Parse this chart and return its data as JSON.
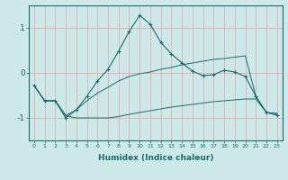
{
  "xlabel": "Humidex (Indice chaleur)",
  "ylabel": "",
  "bg_color": "#cce8e8",
  "line_color": "#1a6b6b",
  "grid_color": "#e8a0a0",
  "xlim": [
    -0.5,
    23.5
  ],
  "ylim": [
    -1.5,
    1.5
  ],
  "xticks": [
    0,
    1,
    2,
    3,
    4,
    5,
    6,
    7,
    8,
    9,
    10,
    11,
    12,
    13,
    14,
    15,
    16,
    17,
    18,
    19,
    20,
    21,
    22,
    23
  ],
  "yticks": [
    -1,
    0,
    1
  ],
  "line1_x": [
    0,
    1,
    2,
    3,
    4,
    5,
    6,
    7,
    8,
    9,
    10,
    11,
    12,
    13,
    14,
    15,
    16,
    17,
    18,
    19,
    20,
    21,
    22,
    23
  ],
  "line1_y": [
    -0.28,
    -0.62,
    -0.62,
    -1.0,
    -0.82,
    -0.52,
    -0.18,
    0.08,
    0.48,
    0.92,
    1.28,
    1.08,
    0.68,
    0.42,
    0.22,
    0.04,
    -0.06,
    -0.04,
    0.06,
    0.02,
    -0.08,
    -0.52,
    -0.88,
    -0.94
  ],
  "line2_x": [
    0,
    1,
    2,
    3,
    4,
    5,
    6,
    7,
    8,
    9,
    10,
    11,
    12,
    13,
    14,
    15,
    16,
    17,
    18,
    19,
    20,
    21,
    22,
    23
  ],
  "line2_y": [
    -0.28,
    -0.62,
    -0.62,
    -0.95,
    -0.82,
    -0.62,
    -0.45,
    -0.32,
    -0.18,
    -0.08,
    -0.02,
    0.02,
    0.08,
    0.12,
    0.18,
    0.22,
    0.26,
    0.3,
    0.32,
    0.35,
    0.38,
    -0.52,
    -0.88,
    -0.9
  ],
  "line3_x": [
    0,
    1,
    2,
    3,
    4,
    5,
    6,
    7,
    8,
    9,
    10,
    11,
    12,
    13,
    14,
    15,
    16,
    17,
    18,
    19,
    20,
    21,
    22,
    23
  ],
  "line3_y": [
    -0.28,
    -0.62,
    -0.62,
    -0.95,
    -1.0,
    -1.0,
    -1.0,
    -1.0,
    -0.97,
    -0.92,
    -0.88,
    -0.84,
    -0.8,
    -0.76,
    -0.73,
    -0.7,
    -0.67,
    -0.64,
    -0.62,
    -0.6,
    -0.58,
    -0.58,
    -0.88,
    -0.9
  ]
}
